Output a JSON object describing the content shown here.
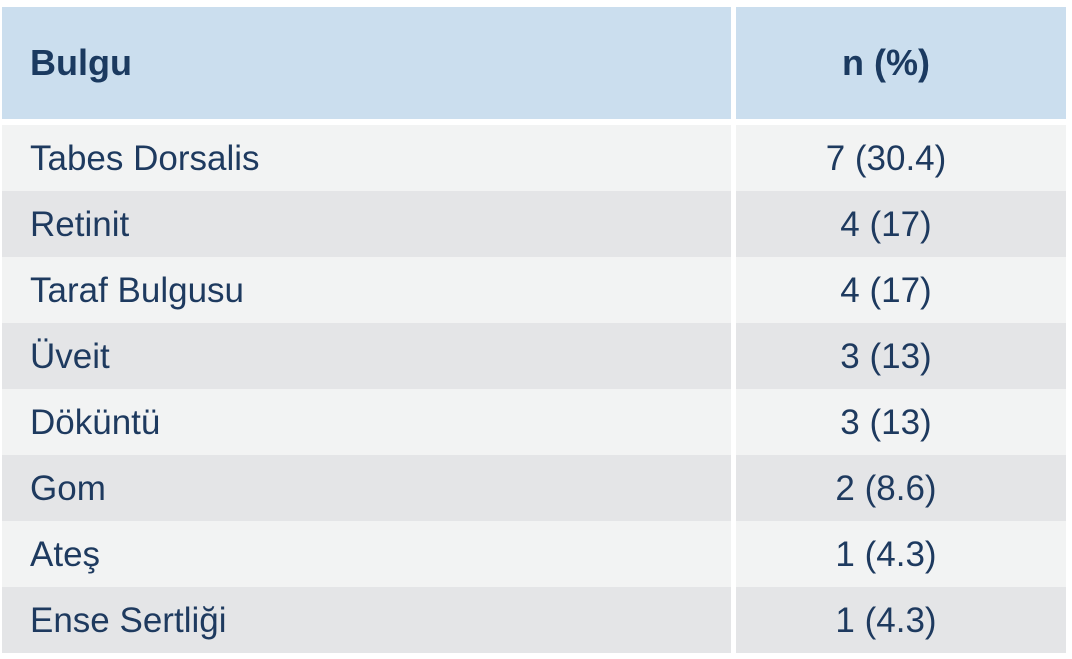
{
  "chart_data": {
    "type": "table",
    "title": "",
    "columns": [
      "Bulgu",
      "n (%)"
    ],
    "rows": [
      [
        "Tabes Dorsalis",
        "7 (30.4)"
      ],
      [
        "Retinit",
        "4 (17)"
      ],
      [
        "Taraf Bulgusu",
        "4 (17)"
      ],
      [
        "Üveit",
        "3 (13)"
      ],
      [
        "Döküntü",
        "3 (13)"
      ],
      [
        "Gom",
        "2 (8.6)"
      ],
      [
        "Ateş",
        "1 (4.3)"
      ],
      [
        "Ense Sertliği",
        "1 (4.3)"
      ]
    ],
    "values_n": [
      7,
      4,
      4,
      3,
      3,
      2,
      1,
      1
    ],
    "values_pct": [
      30.4,
      17,
      17,
      13,
      13,
      8.6,
      4.3,
      4.3
    ],
    "layout": {
      "header_background": "#cbdeee",
      "row_light_background": "#f2f3f3",
      "row_dark_background": "#e4e5e7",
      "text_color": "#1e3a5f",
      "gutter_color": "#ffffff",
      "zebra_striping": true
    }
  }
}
